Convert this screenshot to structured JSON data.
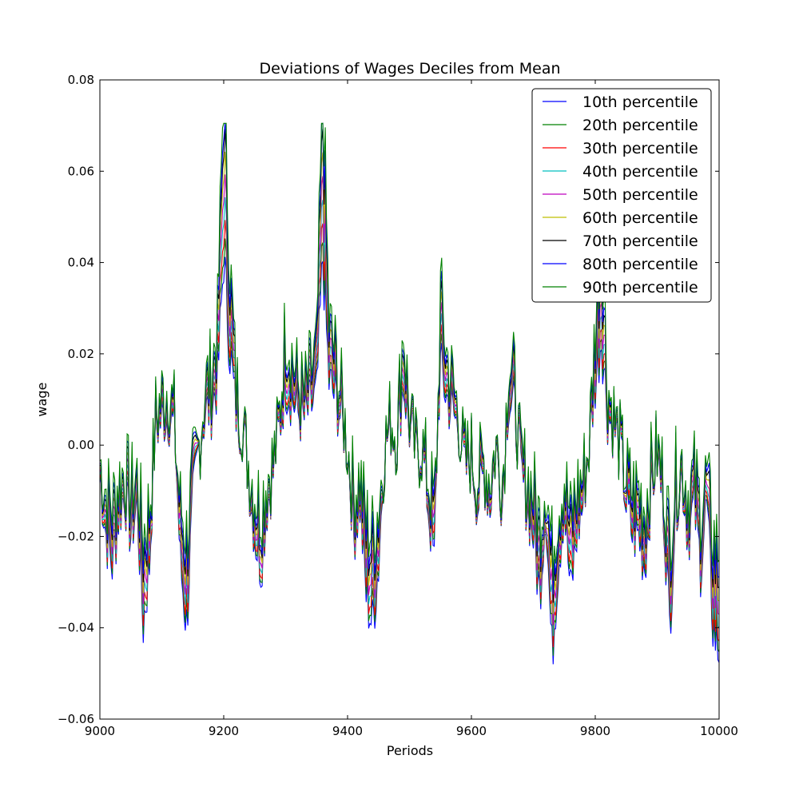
{
  "chart_data": {
    "type": "line",
    "title": "Deviations of Wages Deciles from Mean",
    "xlabel": "Periods",
    "ylabel": "wage",
    "xlim": [
      9000,
      10000
    ],
    "ylim": [
      -0.06,
      0.08
    ],
    "xticks": [
      9000,
      9200,
      9400,
      9600,
      9800,
      10000
    ],
    "xtick_labels": [
      "9000",
      "9200",
      "9400",
      "9600",
      "9800",
      "10000"
    ],
    "yticks": [
      -0.06,
      -0.04,
      -0.02,
      0.0,
      0.02,
      0.04,
      0.06,
      0.08
    ],
    "ytick_labels": [
      "−0.06",
      "−0.04",
      "−0.02",
      "0.00",
      "0.02",
      "0.04",
      "0.06",
      "0.08"
    ],
    "grid": false,
    "legend_position": "top-right",
    "base_series": {
      "x": [
        9000,
        9010,
        9020,
        9030,
        9040,
        9050,
        9060,
        9070,
        9080,
        9090,
        9100,
        9110,
        9120,
        9130,
        9140,
        9150,
        9160,
        9170,
        9180,
        9190,
        9200,
        9210,
        9220,
        9230,
        9240,
        9250,
        9260,
        9270,
        9280,
        9290,
        9300,
        9310,
        9320,
        9330,
        9340,
        9350,
        9360,
        9370,
        9380,
        9390,
        9400,
        9410,
        9420,
        9430,
        9440,
        9450,
        9460,
        9470,
        9480,
        9490,
        9500,
        9510,
        9520,
        9530,
        9540,
        9550,
        9560,
        9570,
        9580,
        9590,
        9600,
        9610,
        9620,
        9630,
        9640,
        9650,
        9660,
        9670,
        9680,
        9690,
        9700,
        9710,
        9720,
        9730,
        9740,
        9750,
        9760,
        9770,
        9780,
        9790,
        9800,
        9810,
        9820,
        9830,
        9840,
        9850,
        9860,
        9870,
        9880,
        9890,
        9900,
        9910,
        9920,
        9930,
        9940,
        9950,
        9960,
        9970,
        9980,
        9990,
        10000
      ],
      "y": [
        -0.005,
        -0.015,
        -0.02,
        -0.012,
        -0.008,
        -0.015,
        -0.01,
        -0.03,
        -0.02,
        0.005,
        0.008,
        0.01,
        0.005,
        -0.02,
        -0.03,
        -0.01,
        0.0,
        0.01,
        0.012,
        0.02,
        0.06,
        0.03,
        0.01,
        0.005,
        -0.005,
        -0.015,
        -0.02,
        -0.01,
        -0.005,
        0.005,
        0.02,
        0.015,
        0.01,
        0.008,
        0.012,
        0.015,
        0.06,
        0.02,
        0.015,
        0.008,
        0.0,
        -0.015,
        -0.01,
        -0.025,
        -0.03,
        -0.02,
        0.0,
        0.005,
        0.002,
        0.02,
        0.005,
        -0.002,
        0.0,
        -0.01,
        -0.02,
        0.025,
        0.015,
        0.01,
        0.005,
        -0.005,
        -0.002,
        -0.01,
        -0.005,
        -0.01,
        0.0,
        -0.01,
        0.015,
        0.01,
        -0.005,
        -0.01,
        -0.015,
        -0.025,
        -0.01,
        -0.035,
        -0.02,
        -0.01,
        -0.025,
        -0.015,
        -0.01,
        0.0,
        0.02,
        0.035,
        0.01,
        0.005,
        0.0,
        -0.01,
        -0.015,
        -0.015,
        -0.02,
        -0.008,
        -0.002,
        -0.01,
        -0.03,
        -0.01,
        -0.005,
        -0.015,
        -0.01,
        -0.02,
        -0.01,
        -0.03,
        -0.035
      ]
    },
    "series": [
      {
        "name": "10th percentile",
        "color": "#0000ff",
        "spread": -0.9
      },
      {
        "name": "20th percentile",
        "color": "#008000",
        "spread": -0.7
      },
      {
        "name": "30th percentile",
        "color": "#ff0000",
        "spread": -0.5
      },
      {
        "name": "40th percentile",
        "color": "#00bfbf",
        "spread": -0.25
      },
      {
        "name": "50th percentile",
        "color": "#bf00bf",
        "spread": 0.0
      },
      {
        "name": "60th percentile",
        "color": "#bfbf00",
        "spread": 0.25
      },
      {
        "name": "70th percentile",
        "color": "#000000",
        "spread": 0.5
      },
      {
        "name": "80th percentile",
        "color": "#0000ff",
        "spread": 0.7
      },
      {
        "name": "90th percentile",
        "color": "#008000",
        "spread": 1.0
      }
    ]
  }
}
